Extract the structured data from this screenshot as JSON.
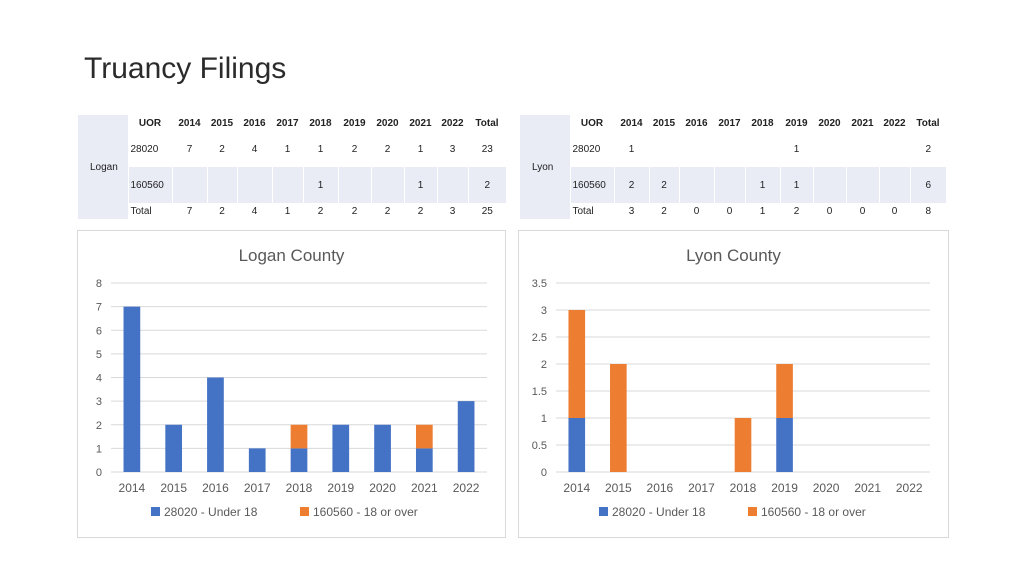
{
  "slide": {
    "title": "Truancy Filings"
  },
  "tables": [
    {
      "county": "Logan",
      "header": [
        "UOR",
        "2014",
        "2015",
        "2016",
        "2017",
        "2018",
        "2019",
        "2020",
        "2021",
        "2022",
        "Total"
      ],
      "rows": [
        [
          "28020",
          "7",
          "2",
          "4",
          "1",
          "1",
          "2",
          "2",
          "1",
          "3",
          "23"
        ],
        [
          "160560",
          "",
          "",
          "",
          "",
          "1",
          "",
          "",
          "1",
          "",
          "2"
        ],
        [
          "Total",
          "7",
          "2",
          "4",
          "1",
          "2",
          "2",
          "2",
          "2",
          "3",
          "25"
        ]
      ]
    },
    {
      "county": "Lyon",
      "header": [
        "UOR",
        "2014",
        "2015",
        "2016",
        "2017",
        "2018",
        "2019",
        "2020",
        "2021",
        "2022",
        "Total"
      ],
      "rows": [
        [
          "28020",
          "1",
          "",
          "",
          "",
          "",
          "1",
          "",
          "",
          "",
          "2"
        ],
        [
          "160560",
          "2",
          "2",
          "",
          "",
          "1",
          "1",
          "",
          "",
          "",
          "6"
        ],
        [
          "Total",
          "3",
          "2",
          "0",
          "0",
          "1",
          "2",
          "0",
          "0",
          "0",
          "8"
        ]
      ]
    }
  ],
  "chart_data": [
    {
      "type": "bar",
      "stacked": true,
      "title": "Logan County",
      "categories": [
        "2014",
        "2015",
        "2016",
        "2017",
        "2018",
        "2019",
        "2020",
        "2021",
        "2022"
      ],
      "series": [
        {
          "name": "28020 - Under 18",
          "values": [
            7,
            2,
            4,
            1,
            1,
            2,
            2,
            1,
            3
          ],
          "color": "#4472c4"
        },
        {
          "name": "160560 - 18 or over",
          "values": [
            0,
            0,
            0,
            0,
            1,
            0,
            0,
            1,
            0
          ],
          "color": "#ed7d31"
        }
      ],
      "ylim": [
        0,
        8
      ],
      "yticks": [
        "0",
        "1",
        "2",
        "3",
        "4",
        "5",
        "6",
        "7",
        "8"
      ],
      "grid": true,
      "legend": "bottom"
    },
    {
      "type": "bar",
      "stacked": true,
      "title": "Lyon County",
      "categories": [
        "2014",
        "2015",
        "2016",
        "2017",
        "2018",
        "2019",
        "2020",
        "2021",
        "2022"
      ],
      "series": [
        {
          "name": "28020 - Under 18",
          "values": [
            1,
            0,
            0,
            0,
            0,
            1,
            0,
            0,
            0
          ],
          "color": "#4472c4"
        },
        {
          "name": "160560 - 18 or over",
          "values": [
            2,
            2,
            0,
            0,
            1,
            1,
            0,
            0,
            0
          ],
          "color": "#ed7d31"
        }
      ],
      "ylim": [
        0,
        3.5
      ],
      "yticks": [
        "0",
        "0.5",
        "1",
        "1.5",
        "2",
        "2.5",
        "3",
        "3.5"
      ],
      "grid": true,
      "legend": "bottom"
    }
  ]
}
